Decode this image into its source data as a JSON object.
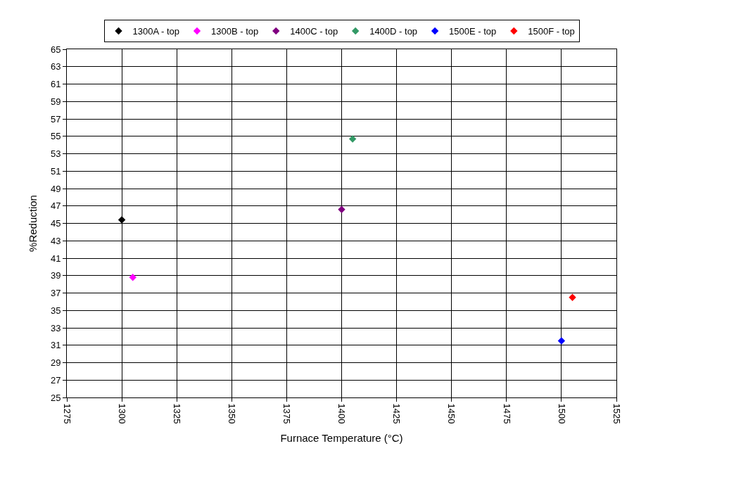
{
  "chart_data": {
    "type": "scatter",
    "xlabel": "Furnace Temperature (°C)",
    "ylabel": "%Reduction",
    "series": [
      {
        "name": "1300A - top",
        "color": "#000000",
        "x": [
          1300
        ],
        "values": [
          45.4
        ]
      },
      {
        "name": "1300B - top",
        "color": "#ff00ff",
        "x": [
          1305
        ],
        "values": [
          38.8
        ]
      },
      {
        "name": "1400C - top",
        "color": "#800080",
        "x": [
          1400
        ],
        "values": [
          46.6
        ]
      },
      {
        "name": "1400D - top",
        "color": "#339966",
        "x": [
          1405
        ],
        "values": [
          54.7
        ]
      },
      {
        "name": "1500E - top",
        "color": "#0000ff",
        "x": [
          1500
        ],
        "values": [
          31.5
        ]
      },
      {
        "name": "1500F - top",
        "color": "#ff0000",
        "x": [
          1505
        ],
        "values": [
          36.5
        ]
      }
    ],
    "xlim": [
      1275,
      1525
    ],
    "xticks": [
      1275,
      1300,
      1325,
      1350,
      1375,
      1400,
      1425,
      1450,
      1475,
      1500,
      1525
    ],
    "ylim": [
      25,
      65
    ],
    "yticks": [
      25,
      27,
      29,
      31,
      33,
      35,
      37,
      39,
      41,
      43,
      45,
      47,
      49,
      51,
      53,
      55,
      57,
      59,
      61,
      63,
      65
    ],
    "grid": true,
    "legend": "top",
    "marker": "diamond"
  }
}
